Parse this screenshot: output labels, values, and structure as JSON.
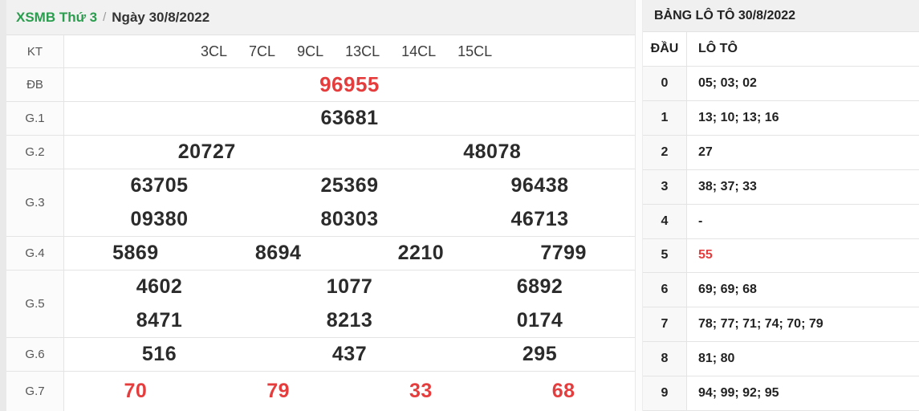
{
  "left": {
    "title": {
      "lottery": "XSMB Thứ 3",
      "separator": "/",
      "date": "Ngày 30/8/2022"
    },
    "kt_label": "KT",
    "kt_options": [
      "3CL",
      "7CL",
      "9CL",
      "13CL",
      "14CL",
      "15CL"
    ],
    "rows": [
      {
        "label": "ĐB",
        "red": true,
        "lines": [
          [
            "96955"
          ]
        ]
      },
      {
        "label": "G.1",
        "red": false,
        "lines": [
          [
            "63681"
          ]
        ]
      },
      {
        "label": "G.2",
        "red": false,
        "lines": [
          [
            "20727",
            "48078"
          ]
        ]
      },
      {
        "label": "G.3",
        "red": false,
        "lines": [
          [
            "63705",
            "25369",
            "96438"
          ],
          [
            "09380",
            "80303",
            "46713"
          ]
        ]
      },
      {
        "label": "G.4",
        "red": false,
        "lines": [
          [
            "5869",
            "8694",
            "2210",
            "7799"
          ]
        ]
      },
      {
        "label": "G.5",
        "red": false,
        "lines": [
          [
            "4602",
            "1077",
            "6892"
          ],
          [
            "8471",
            "8213",
            "0174"
          ]
        ]
      },
      {
        "label": "G.6",
        "red": false,
        "lines": [
          [
            "516",
            "437",
            "295"
          ]
        ]
      },
      {
        "label": "G.7",
        "red": true,
        "lines": [
          [
            "70",
            "79",
            "33",
            "68"
          ]
        ]
      }
    ]
  },
  "right": {
    "title": "BẢNG LÔ TÔ 30/8/2022",
    "columns": [
      "ĐẦU",
      "LÔ TÔ"
    ],
    "rows": [
      {
        "dau": "0",
        "loto": "05; 03; 02",
        "red": false
      },
      {
        "dau": "1",
        "loto": "13; 10; 13; 16",
        "red": false
      },
      {
        "dau": "2",
        "loto": "27",
        "red": false
      },
      {
        "dau": "3",
        "loto": "38; 37; 33",
        "red": false
      },
      {
        "dau": "4",
        "loto": "-",
        "red": false
      },
      {
        "dau": "5",
        "loto": "55",
        "red": true
      },
      {
        "dau": "6",
        "loto": "69; 69; 68",
        "red": false
      },
      {
        "dau": "7",
        "loto": "78; 77; 71; 74; 70; 79",
        "red": false
      },
      {
        "dau": "8",
        "loto": "81; 80",
        "red": false
      },
      {
        "dau": "9",
        "loto": "94; 99; 92; 95",
        "red": false
      }
    ]
  },
  "colors": {
    "accent_green": "#2a9d4e",
    "accent_red": "#e53d3d",
    "title_bar_bg": "#f1f1f1",
    "border": "#e4e4e4"
  }
}
